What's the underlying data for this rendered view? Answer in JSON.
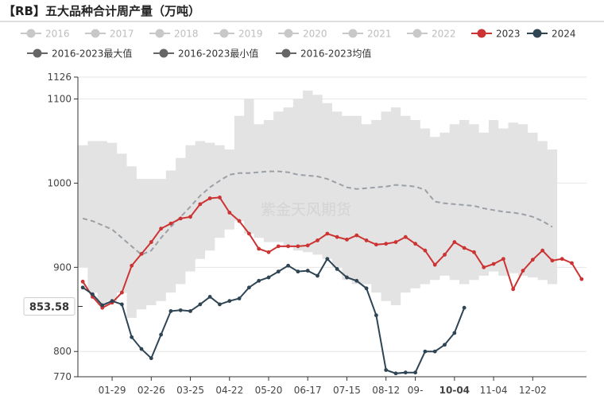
{
  "title": "【RB】五大品种合计周产量（万吨）",
  "watermark": "紫金天风期货",
  "colors": {
    "muted": "#c8c8c8",
    "s2023": "#cc3333",
    "s2024": "#2f4554",
    "stat": "#666666",
    "band": "#e3e3e3",
    "avg": "#9aa0a6",
    "tooltip_label_bg": "#ffffff"
  },
  "chart_data": {
    "type": "line",
    "ylim": [
      770,
      1126
    ],
    "y_ticks": [
      770,
      800,
      900,
      1000,
      1100,
      1126
    ],
    "x_tick_labels": [
      "01-29",
      "02-26",
      "03-25",
      "04-22",
      "05-20",
      "06-17",
      "07-15",
      "08-12",
      "09-",
      "10-04",
      "11-04",
      "12-02"
    ],
    "x_tick_weeks": [
      4,
      8,
      12,
      16,
      20,
      24,
      28,
      32,
      35,
      39,
      43,
      47
    ],
    "highlight_tick": "10-04",
    "pointer_value": "853.58",
    "pointer_y": 853.58,
    "legend": [
      {
        "name": "2016",
        "state": "off"
      },
      {
        "name": "2017",
        "state": "off"
      },
      {
        "name": "2018",
        "state": "off"
      },
      {
        "name": "2019",
        "state": "off"
      },
      {
        "name": "2020",
        "state": "off"
      },
      {
        "name": "2021",
        "state": "off"
      },
      {
        "name": "2022",
        "state": "off"
      },
      {
        "name": "2023",
        "state": "on"
      },
      {
        "name": "2024",
        "state": "on"
      },
      {
        "name": "2016-2023最大值",
        "state": "stat"
      },
      {
        "name": "2016-2023最小值",
        "state": "stat"
      },
      {
        "name": "2016-2023均值",
        "state": "stat"
      }
    ],
    "band_max": [
      1045,
      1050,
      1050,
      1048,
      1035,
      1020,
      1005,
      1005,
      1005,
      1015,
      1030,
      1045,
      1050,
      1048,
      1045,
      1040,
      1080,
      1100,
      1070,
      1075,
      1085,
      1090,
      1100,
      1110,
      1105,
      1095,
      1085,
      1080,
      1080,
      1070,
      1075,
      1085,
      1090,
      1080,
      1075,
      1065,
      1055,
      1060,
      1070,
      1075,
      1070,
      1060,
      1075,
      1065,
      1072,
      1070,
      1060,
      1050,
      1040
    ],
    "band_min": [
      900,
      870,
      855,
      860,
      870,
      840,
      850,
      855,
      860,
      870,
      880,
      895,
      910,
      920,
      935,
      945,
      955,
      940,
      935,
      930,
      930,
      925,
      920,
      918,
      915,
      910,
      900,
      885,
      880,
      880,
      870,
      860,
      855,
      870,
      875,
      880,
      885,
      890,
      885,
      880,
      885,
      890,
      895,
      890,
      893,
      890,
      888,
      885,
      880
    ],
    "avg": [
      958,
      955,
      950,
      945,
      935,
      925,
      915,
      920,
      935,
      948,
      960,
      972,
      985,
      995,
      1003,
      1010,
      1012,
      1012,
      1013,
      1014,
      1014,
      1013,
      1010,
      1009,
      1008,
      1005,
      1000,
      995,
      993,
      994,
      995,
      996,
      998,
      997,
      996,
      992,
      978,
      976,
      975,
      974,
      973,
      970,
      968,
      966,
      965,
      963,
      960,
      955,
      948
    ],
    "series": [
      {
        "name": "2023",
        "values": [
          883,
          865,
          852,
          858,
          870,
          902,
          916,
          930,
          946,
          952,
          958,
          960,
          975,
          982,
          983,
          965,
          955,
          940,
          922,
          918,
          925,
          925,
          925,
          926,
          932,
          940,
          936,
          933,
          938,
          932,
          927,
          928,
          930,
          936,
          928,
          920,
          903,
          915,
          930,
          923,
          918,
          900,
          904,
          910,
          874,
          896,
          909,
          920,
          908,
          910,
          905,
          886
        ]
      },
      {
        "name": "2024",
        "values": [
          876,
          868,
          855,
          860,
          856,
          817,
          803,
          792,
          820,
          848,
          849,
          848,
          856,
          865,
          856,
          860,
          863,
          876,
          884,
          888,
          895,
          902,
          895,
          896,
          890,
          910,
          898,
          888,
          884,
          875,
          843,
          778,
          774,
          775,
          775,
          800,
          800,
          808,
          822,
          852
        ]
      }
    ]
  }
}
